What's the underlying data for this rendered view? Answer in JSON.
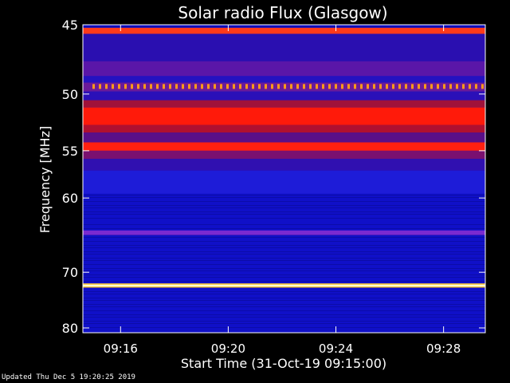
{
  "chart_data": {
    "type": "heatmap",
    "title": "Solar radio Flux (Glasgow)",
    "xlabel": "Start Time (31-Oct-19 09:15:00)",
    "ylabel": "Frequency [MHz]",
    "xlim": [
      -0.4,
      14.55
    ],
    "ylim": [
      45,
      81
    ],
    "y_scale": "reciprocal",
    "x_ticks": [
      {
        "value": 1,
        "label": "09:16"
      },
      {
        "value": 5,
        "label": "09:20"
      },
      {
        "value": 9,
        "label": "09:24"
      },
      {
        "value": 13,
        "label": "09:28"
      }
    ],
    "y_ticks": [
      {
        "value": 45,
        "label": "45"
      },
      {
        "value": 50,
        "label": "50"
      },
      {
        "value": 55,
        "label": "55"
      },
      {
        "value": 60,
        "label": "60"
      },
      {
        "value": 70,
        "label": "70"
      },
      {
        "value": 80,
        "label": "80"
      }
    ],
    "bands": [
      {
        "f1": 45.2,
        "f2": 45.6,
        "color": "#ff3a1a"
      },
      {
        "f1": 45.6,
        "f2": 47.5,
        "color": "#2a0fb0"
      },
      {
        "f1": 47.5,
        "f2": 48.6,
        "color": "#5a16a8"
      },
      {
        "f1": 48.6,
        "f2": 49.1,
        "color": "#2412c0"
      },
      {
        "f1": 49.1,
        "f2": 49.8,
        "color": "#6a1a9a"
      },
      {
        "f1": 49.8,
        "f2": 50.5,
        "color": "#2a10b8"
      },
      {
        "f1": 50.5,
        "f2": 51.1,
        "color": "#a0123a"
      },
      {
        "f1": 51.1,
        "f2": 52.6,
        "color": "#ff1a0a"
      },
      {
        "f1": 52.6,
        "f2": 53.3,
        "color": "#b01030"
      },
      {
        "f1": 53.3,
        "f2": 54.2,
        "color": "#5a0f88"
      },
      {
        "f1": 54.2,
        "f2": 55.0,
        "color": "#ff2010"
      },
      {
        "f1": 55.0,
        "f2": 55.8,
        "color": "#7a1070"
      },
      {
        "f1": 55.8,
        "f2": 57.0,
        "color": "#3010b0"
      },
      {
        "f1": 57.0,
        "f2": 59.5,
        "color": "#1e1cd8"
      },
      {
        "f1": 64.0,
        "f2": 64.6,
        "color": "#7a2ad0"
      },
      {
        "f1": 71.8,
        "f2": 72.5,
        "color": "#ffcc40"
      },
      {
        "f1": 72.02,
        "f2": 72.3,
        "color": "#ffffd8"
      }
    ],
    "dotted_line": {
      "freq": 49.4,
      "color": "#ff9a1a"
    },
    "colors": {
      "background": "#1010c8",
      "frame": "#ffffff"
    }
  },
  "footer": "Updated Thu Dec  5 19:20:25 2019"
}
